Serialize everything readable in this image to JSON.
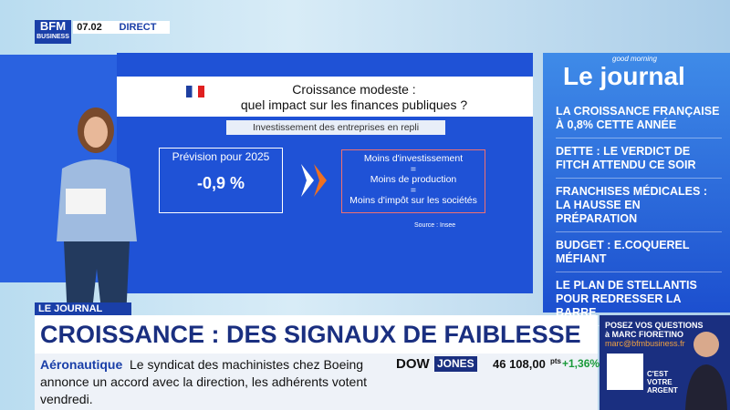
{
  "logo": {
    "top": "BFM",
    "bottom": "BUSINESS"
  },
  "clock": "07.02",
  "live": "DIRECT",
  "screen": {
    "title": [
      "Croissance modeste :",
      "quel impact sur les finances publiques ?"
    ],
    "subtitle": "Investissement des entreprises en repli",
    "forecast_label": "Prévision pour 2025",
    "forecast_value": "-0,9 %",
    "chain": [
      "Moins d'investissement",
      "=",
      "Moins de production",
      "=",
      "Moins d'impôt sur les sociétés"
    ],
    "source": "Source : Insee"
  },
  "panel": {
    "brand_small": "good morning",
    "brand": "Le journal",
    "items": [
      "LA CROISSANCE FRANÇAISE À 0,8% CETTE ANNÉE",
      "DETTE : LE VERDICT DE FITCH ATTENDU CE SOIR",
      "FRANCHISES MÉDICALES : LA HAUSSE EN PRÉPARATION",
      "BUDGET : E.COQUEREL MÉFIANT",
      "LE PLAN DE STELLANTIS POUR REDRESSER LA BARRE"
    ]
  },
  "tag": "LE JOURNAL",
  "headline": "CROISSANCE : DES SIGNAUX DE FAIBLESSE",
  "ticker": {
    "topic": "Aéronautique",
    "text": "Le syndicat des machinistes chez Boeing annonce un accord avec la direction, les adhérents votent vendredi."
  },
  "market": {
    "index_a": "DOW",
    "index_b": "JONES",
    "value": "46 108,00",
    "unit": "pts",
    "change": "+1,36%"
  },
  "promo": {
    "line1": "POSEZ VOS QUESTIONS",
    "line2": "à MARC FIORETINO",
    "email": "marc@bfmbusiness.fr",
    "show": [
      "C'EST",
      "VOTRE",
      "ARGENT"
    ]
  }
}
